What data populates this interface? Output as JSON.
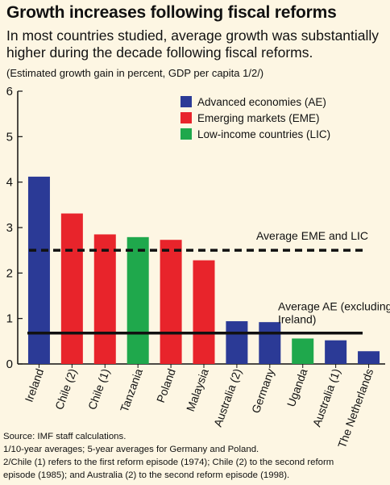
{
  "header": {
    "title": "Growth increases following fiscal reforms",
    "subtitle": "In most countries studied, average growth was substantially higher during the decade following fiscal reforms.",
    "note": "(Estimated growth gain in percent, GDP per capita 1/2/)"
  },
  "footer": {
    "source": "Source: IMF staff calculations.",
    "note1": "1/10-year averages; 5-year averages for Germany and Poland.",
    "note2_line1": "2/Chile (1) refers to the first reform episode (1974); Chile (2) to the second reform",
    "note2_line2": "episode (1985); and Australia (2) to the second reform episode (1998)."
  },
  "colors": {
    "AE": "#2b3a96",
    "EME": "#e8242b",
    "LIC": "#1fa84c",
    "background": "#fdf6e3"
  },
  "chart_data": {
    "type": "bar",
    "categories": [
      "Ireland",
      "Chile (2)",
      "Chile (1)",
      "Tanzania",
      "Poland",
      "Malaysia",
      "Australia (2)",
      "Germany",
      "Uganda",
      "Australia (1)",
      "The Netherlands"
    ],
    "values": [
      4.12,
      3.31,
      2.85,
      2.79,
      2.73,
      2.28,
      0.94,
      0.92,
      0.56,
      0.52,
      0.28
    ],
    "groups": [
      "AE",
      "EME",
      "EME",
      "LIC",
      "EME",
      "EME",
      "AE",
      "AE",
      "LIC",
      "AE",
      "AE"
    ],
    "legend": [
      {
        "key": "AE",
        "label": "Advanced economies (AE)"
      },
      {
        "key": "EME",
        "label": "Emerging markets (EME)"
      },
      {
        "key": "LIC",
        "label": "Low-income countries (LIC)"
      }
    ],
    "reference_lines": [
      {
        "name": "Average EME and LIC",
        "value": 2.5,
        "style": "dashed"
      },
      {
        "name": "Average AE (excluding Ireland)",
        "value": 0.68,
        "style": "solid"
      }
    ],
    "ylim": [
      0,
      6
    ],
    "yticks": [
      0,
      1,
      2,
      3,
      4,
      5,
      6
    ],
    "legend_position": "top-right"
  }
}
